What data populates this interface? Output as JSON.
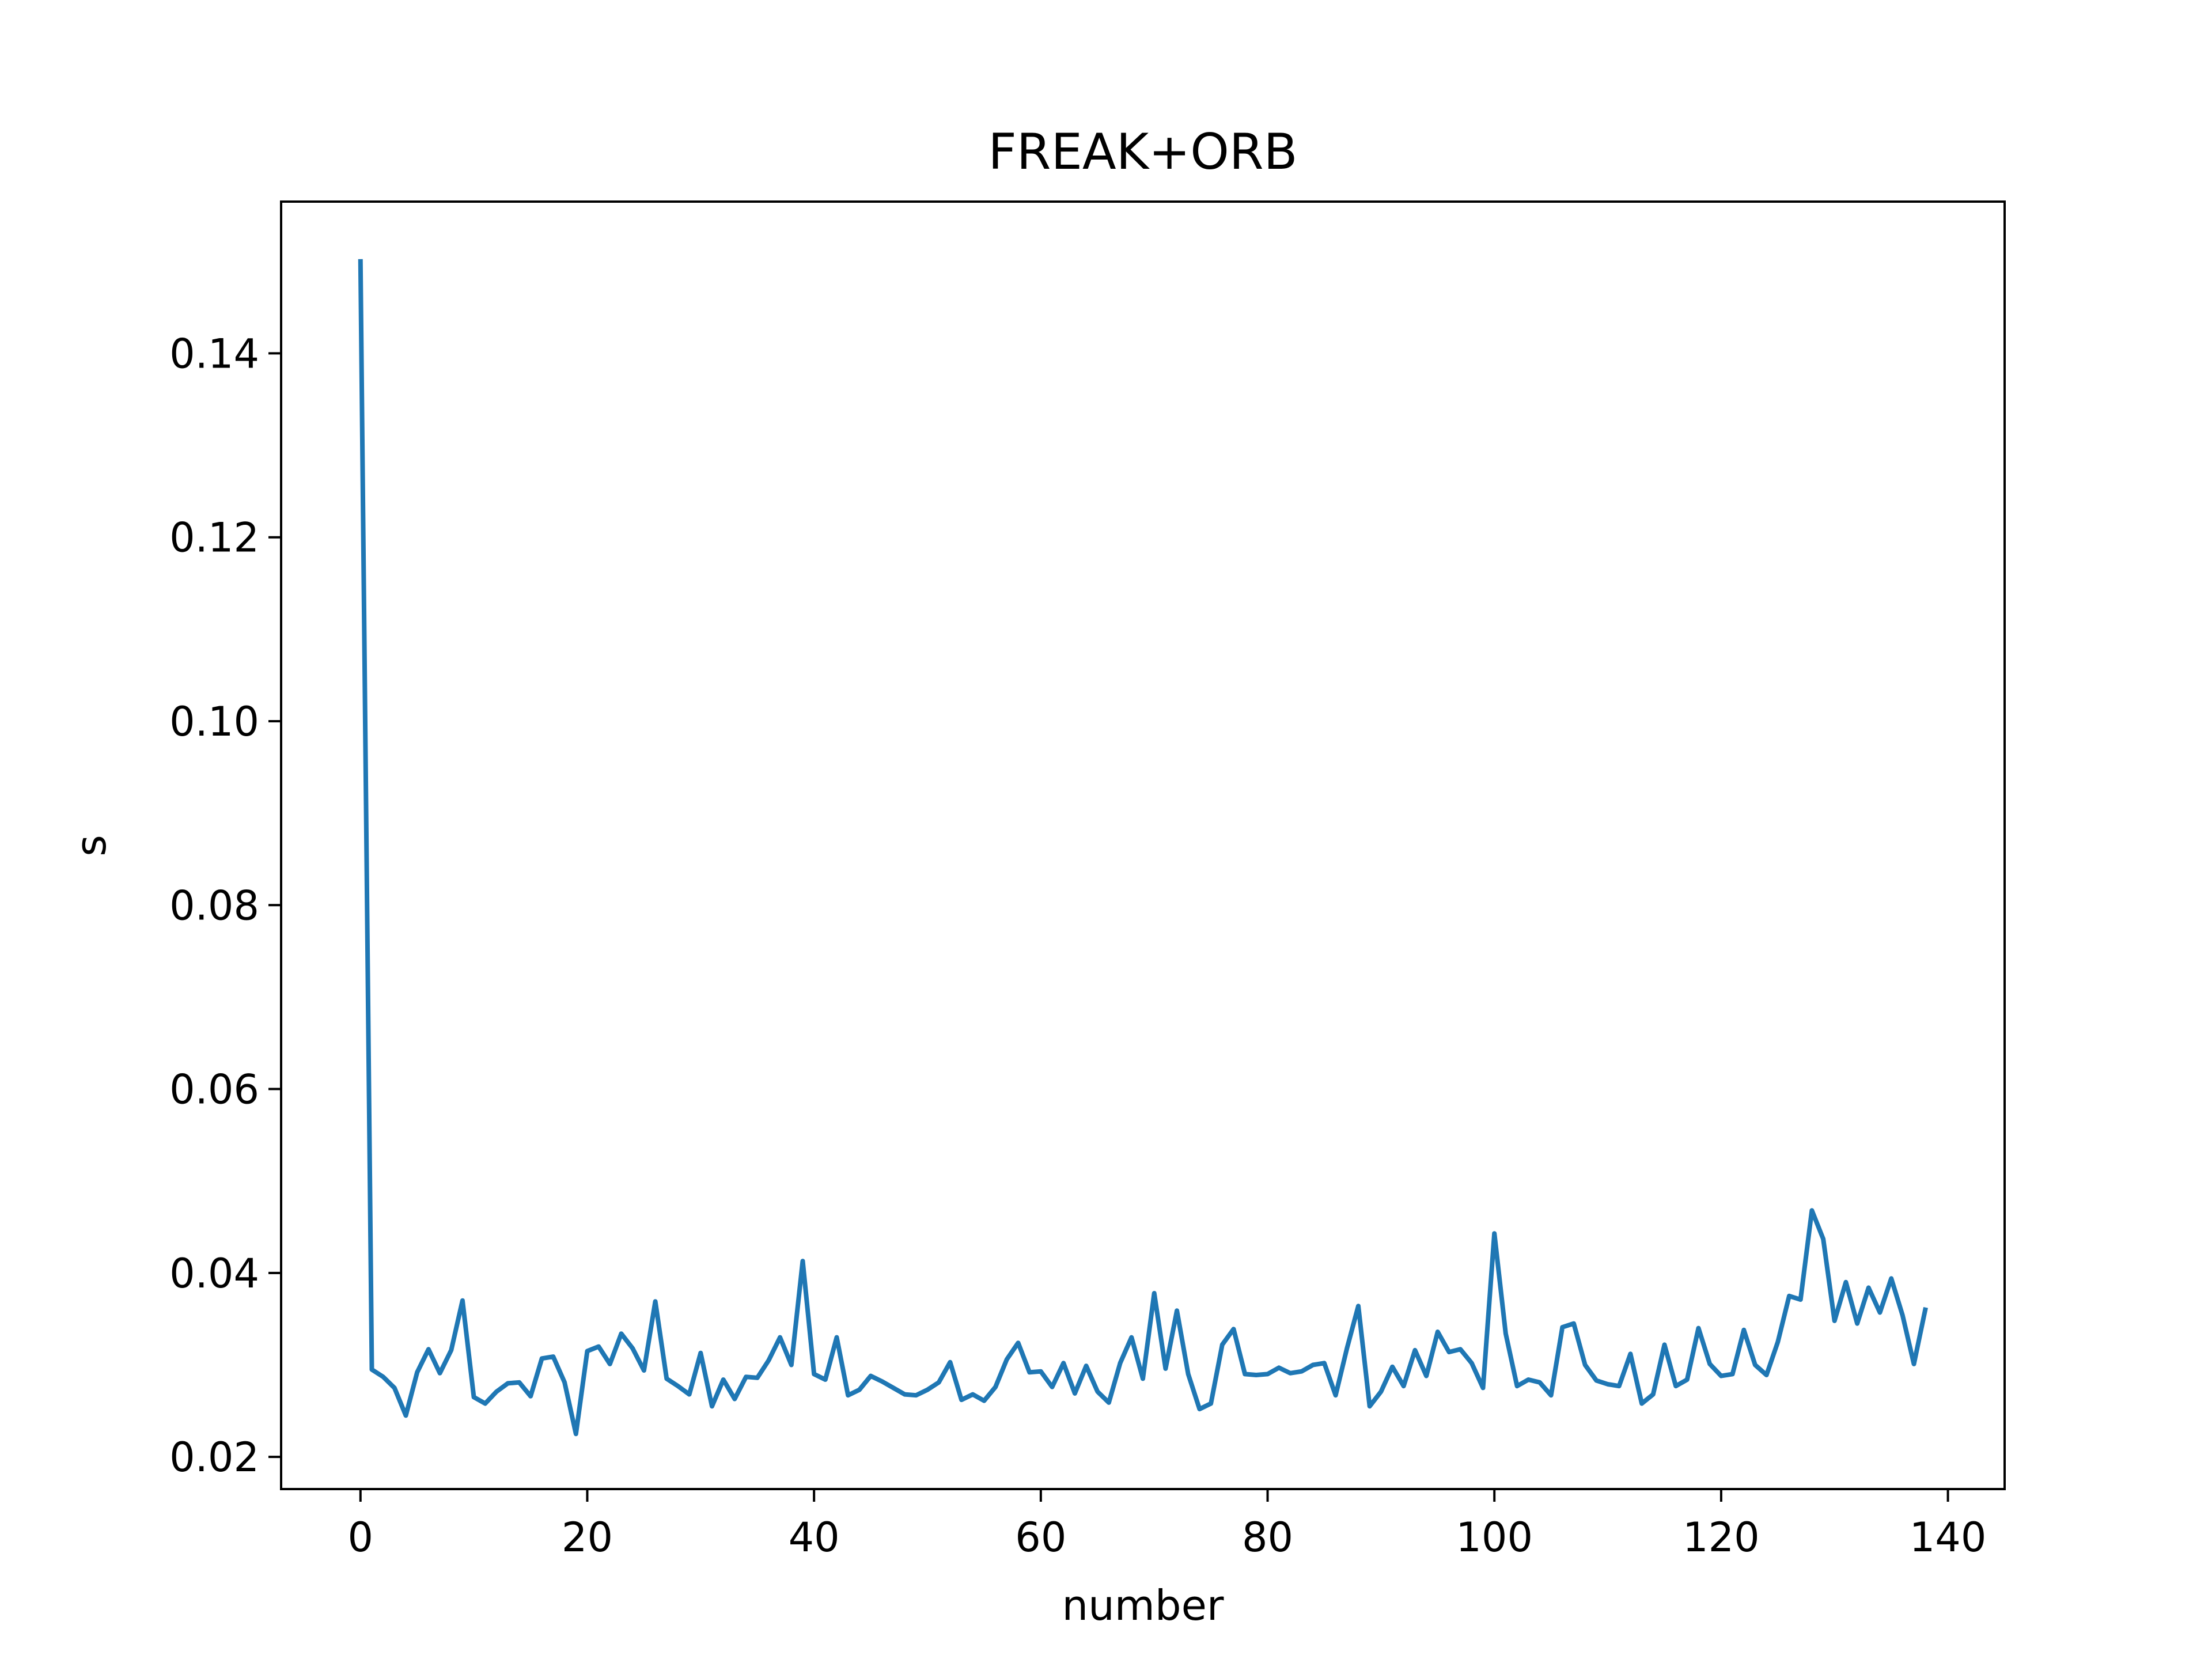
{
  "chart_data": {
    "type": "line",
    "title": "FREAK+ORB",
    "xlabel": "number",
    "ylabel": "s",
    "xlim": [
      -7,
      145
    ],
    "ylim": [
      0.0165,
      0.1565
    ],
    "xticks": [
      0,
      20,
      40,
      60,
      80,
      100,
      120,
      140
    ],
    "xtick_labels": [
      "0",
      "20",
      "40",
      "60",
      "80",
      "100",
      "120",
      "140"
    ],
    "yticks": [
      0.02,
      0.04,
      0.06,
      0.08,
      0.1,
      0.12,
      0.14
    ],
    "ytick_labels": [
      "0.02",
      "0.04",
      "0.06",
      "0.08",
      "0.10",
      "0.12",
      "0.14"
    ],
    "grid": false,
    "line_color": "#1f77b4",
    "series": [
      {
        "x": [
          0,
          1,
          2,
          3,
          4,
          5,
          6,
          7,
          8,
          9,
          10,
          11,
          12,
          13,
          14,
          15,
          16,
          17,
          18,
          19,
          20,
          21,
          22,
          23,
          24,
          25,
          26,
          27,
          28,
          29,
          30,
          31,
          32,
          33,
          34,
          35,
          36,
          37,
          38,
          39,
          40,
          41,
          42,
          43,
          44,
          45,
          46,
          47,
          48,
          49,
          50,
          51,
          52,
          53,
          54,
          55,
          56,
          57,
          58,
          59,
          60,
          61,
          62,
          63,
          64,
          65,
          66,
          67,
          68,
          69,
          70,
          71,
          72,
          73,
          74,
          75,
          76,
          77,
          78,
          79,
          80,
          81,
          82,
          83,
          84,
          85,
          86,
          87,
          88,
          89,
          90,
          91,
          92,
          93,
          94,
          95,
          96,
          97,
          98,
          99,
          100,
          101,
          102,
          103,
          104,
          105,
          106,
          107,
          108,
          109,
          110,
          111,
          112,
          113,
          114,
          115,
          116,
          117,
          118,
          119,
          120,
          121,
          122,
          123,
          124,
          125,
          126,
          127,
          128,
          129,
          130,
          131,
          132,
          133,
          134,
          135,
          136,
          137,
          138
        ],
        "y": [
          0.15,
          0.0295,
          0.0287,
          0.0275,
          0.0245,
          0.0292,
          0.0317,
          0.0291,
          0.0316,
          0.037,
          0.0265,
          0.0258,
          0.0271,
          0.028,
          0.0281,
          0.0266,
          0.0307,
          0.0309,
          0.0281,
          0.0225,
          0.0315,
          0.032,
          0.0301,
          0.0334,
          0.0318,
          0.0294,
          0.0369,
          0.0285,
          0.0277,
          0.0268,
          0.0313,
          0.0255,
          0.0284,
          0.0263,
          0.0287,
          0.0286,
          0.0305,
          0.033,
          0.03,
          0.0413,
          0.029,
          0.0284,
          0.033,
          0.0267,
          0.0273,
          0.0288,
          0.0282,
          0.0275,
          0.0268,
          0.0267,
          0.0273,
          0.0281,
          0.0303,
          0.0262,
          0.0268,
          0.0261,
          0.0276,
          0.0306,
          0.0324,
          0.0292,
          0.0293,
          0.0276,
          0.0302,
          0.0269,
          0.0299,
          0.0271,
          0.0259,
          0.0302,
          0.033,
          0.0285,
          0.0378,
          0.0296,
          0.0359,
          0.029,
          0.0252,
          0.0258,
          0.0322,
          0.0339,
          0.029,
          0.0289,
          0.029,
          0.0297,
          0.0291,
          0.0293,
          0.03,
          0.0302,
          0.0267,
          0.0318,
          0.0364,
          0.0255,
          0.0271,
          0.0298,
          0.0277,
          0.0316,
          0.0288,
          0.0336,
          0.0314,
          0.0317,
          0.0302,
          0.0275,
          0.0443,
          0.0334,
          0.0277,
          0.0284,
          0.0281,
          0.0267,
          0.0341,
          0.0345,
          0.03,
          0.0283,
          0.0279,
          0.0277,
          0.0312,
          0.0258,
          0.0268,
          0.0322,
          0.0277,
          0.0284,
          0.034,
          0.0301,
          0.0288,
          0.029,
          0.0338,
          0.03,
          0.0289,
          0.0325,
          0.0375,
          0.0371,
          0.0468,
          0.0437,
          0.0348,
          0.039,
          0.0345,
          0.0384,
          0.0357,
          0.0394,
          0.0354,
          0.0301,
          0.036
        ]
      }
    ]
  }
}
